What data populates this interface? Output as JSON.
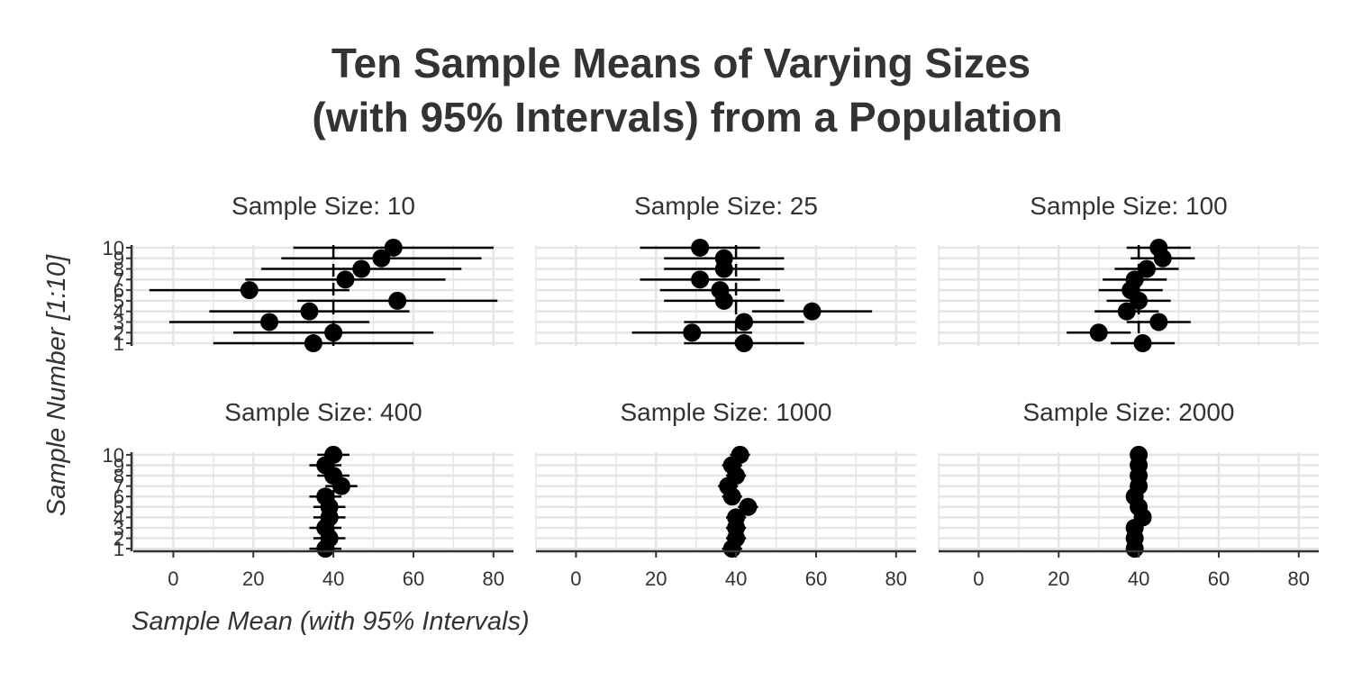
{
  "chart_data": {
    "type": "scatter",
    "title_lines": [
      "Ten Sample Means of Varying Sizes",
      "(with 95% Intervals) from a Population"
    ],
    "xlabel": "Sample Mean (with 95% Intervals)",
    "ylabel": "Sample Number [1:10]",
    "xlim": [
      -10,
      85
    ],
    "x_ticks": [
      0,
      20,
      40,
      60,
      80
    ],
    "x_tick_labels": [
      "0",
      "20",
      "40",
      "60",
      "80"
    ],
    "y_ticks": [
      1,
      2,
      3,
      4,
      5,
      6,
      7,
      8,
      9,
      10
    ],
    "y_tick_labels": [
      "1",
      "2",
      "3",
      "4",
      "5",
      "6",
      "7",
      "8",
      "9",
      "10"
    ],
    "reference_line_x": 40,
    "grid": true,
    "panels": [
      {
        "label": "Sample Size: 10",
        "samples": [
          {
            "sample": 1,
            "mean": 35,
            "lower": 10,
            "upper": 60
          },
          {
            "sample": 2,
            "mean": 40,
            "lower": 15,
            "upper": 65
          },
          {
            "sample": 3,
            "mean": 24,
            "lower": -1,
            "upper": 49
          },
          {
            "sample": 4,
            "mean": 34,
            "lower": 9,
            "upper": 59
          },
          {
            "sample": 5,
            "mean": 56,
            "lower": 31,
            "upper": 81
          },
          {
            "sample": 6,
            "mean": 19,
            "lower": -6,
            "upper": 44
          },
          {
            "sample": 7,
            "mean": 43,
            "lower": 18,
            "upper": 68
          },
          {
            "sample": 8,
            "mean": 47,
            "lower": 22,
            "upper": 72
          },
          {
            "sample": 9,
            "mean": 52,
            "lower": 27,
            "upper": 77
          },
          {
            "sample": 10,
            "mean": 55,
            "lower": 30,
            "upper": 80
          }
        ]
      },
      {
        "label": "Sample Size: 25",
        "samples": [
          {
            "sample": 1,
            "mean": 42,
            "lower": 27,
            "upper": 57
          },
          {
            "sample": 2,
            "mean": 29,
            "lower": 14,
            "upper": 44
          },
          {
            "sample": 3,
            "mean": 42,
            "lower": 27,
            "upper": 57
          },
          {
            "sample": 4,
            "mean": 59,
            "lower": 44,
            "upper": 74
          },
          {
            "sample": 5,
            "mean": 37,
            "lower": 22,
            "upper": 52
          },
          {
            "sample": 6,
            "mean": 36,
            "lower": 21,
            "upper": 51
          },
          {
            "sample": 7,
            "mean": 31,
            "lower": 16,
            "upper": 46
          },
          {
            "sample": 8,
            "mean": 37,
            "lower": 22,
            "upper": 52
          },
          {
            "sample": 9,
            "mean": 37,
            "lower": 22,
            "upper": 52
          },
          {
            "sample": 10,
            "mean": 31,
            "lower": 16,
            "upper": 46
          }
        ]
      },
      {
        "label": "Sample Size: 100",
        "samples": [
          {
            "sample": 1,
            "mean": 41,
            "lower": 33,
            "upper": 49
          },
          {
            "sample": 2,
            "mean": 30,
            "lower": 22,
            "upper": 38
          },
          {
            "sample": 3,
            "mean": 45,
            "lower": 37,
            "upper": 53
          },
          {
            "sample": 4,
            "mean": 37,
            "lower": 29,
            "upper": 45
          },
          {
            "sample": 5,
            "mean": 40,
            "lower": 32,
            "upper": 48
          },
          {
            "sample": 6,
            "mean": 38,
            "lower": 30,
            "upper": 46
          },
          {
            "sample": 7,
            "mean": 39,
            "lower": 31,
            "upper": 47
          },
          {
            "sample": 8,
            "mean": 42,
            "lower": 34,
            "upper": 50
          },
          {
            "sample": 9,
            "mean": 46,
            "lower": 38,
            "upper": 54
          },
          {
            "sample": 10,
            "mean": 45,
            "lower": 37,
            "upper": 53
          }
        ]
      },
      {
        "label": "Sample Size: 400",
        "samples": [
          {
            "sample": 1,
            "mean": 38,
            "lower": 34,
            "upper": 42
          },
          {
            "sample": 2,
            "mean": 39,
            "lower": 35,
            "upper": 43
          },
          {
            "sample": 3,
            "mean": 38,
            "lower": 34,
            "upper": 42
          },
          {
            "sample": 4,
            "mean": 39,
            "lower": 35,
            "upper": 43
          },
          {
            "sample": 5,
            "mean": 39,
            "lower": 35,
            "upper": 43
          },
          {
            "sample": 6,
            "mean": 38,
            "lower": 34,
            "upper": 42
          },
          {
            "sample": 7,
            "mean": 42,
            "lower": 38,
            "upper": 46
          },
          {
            "sample": 8,
            "mean": 40,
            "lower": 36,
            "upper": 44
          },
          {
            "sample": 9,
            "mean": 38,
            "lower": 34,
            "upper": 42
          },
          {
            "sample": 10,
            "mean": 40,
            "lower": 36,
            "upper": 44
          }
        ]
      },
      {
        "label": "Sample Size: 1000",
        "samples": [
          {
            "sample": 1,
            "mean": 39,
            "lower": 36.5,
            "upper": 41.5
          },
          {
            "sample": 2,
            "mean": 40,
            "lower": 37.5,
            "upper": 42.5
          },
          {
            "sample": 3,
            "mean": 40,
            "lower": 37.5,
            "upper": 42.5
          },
          {
            "sample": 4,
            "mean": 40,
            "lower": 37.5,
            "upper": 42.5
          },
          {
            "sample": 5,
            "mean": 43,
            "lower": 40.5,
            "upper": 45.5
          },
          {
            "sample": 6,
            "mean": 39,
            "lower": 36.5,
            "upper": 41.5
          },
          {
            "sample": 7,
            "mean": 38,
            "lower": 35.5,
            "upper": 40.5
          },
          {
            "sample": 8,
            "mean": 40,
            "lower": 37.5,
            "upper": 42.5
          },
          {
            "sample": 9,
            "mean": 39,
            "lower": 36.5,
            "upper": 41.5
          },
          {
            "sample": 10,
            "mean": 41,
            "lower": 38.5,
            "upper": 43.5
          }
        ]
      },
      {
        "label": "Sample Size: 2000",
        "samples": [
          {
            "sample": 1,
            "mean": 39,
            "lower": 37.2,
            "upper": 40.8
          },
          {
            "sample": 2,
            "mean": 39,
            "lower": 37.2,
            "upper": 40.8
          },
          {
            "sample": 3,
            "mean": 39,
            "lower": 37.2,
            "upper": 40.8
          },
          {
            "sample": 4,
            "mean": 41,
            "lower": 39.2,
            "upper": 42.8
          },
          {
            "sample": 5,
            "mean": 40,
            "lower": 38.2,
            "upper": 41.8
          },
          {
            "sample": 6,
            "mean": 39,
            "lower": 37.2,
            "upper": 40.8
          },
          {
            "sample": 7,
            "mean": 40,
            "lower": 38.2,
            "upper": 41.8
          },
          {
            "sample": 8,
            "mean": 40,
            "lower": 38.2,
            "upper": 41.8
          },
          {
            "sample": 9,
            "mean": 40,
            "lower": 38.2,
            "upper": 41.8
          },
          {
            "sample": 10,
            "mean": 40,
            "lower": 38.2,
            "upper": 41.8
          }
        ]
      }
    ]
  },
  "colors": {
    "point": "#000000",
    "interval": "#000000",
    "reference_line": "#000000",
    "grid": "#e5e5e5",
    "axis": "#333333",
    "text": "#333333"
  }
}
